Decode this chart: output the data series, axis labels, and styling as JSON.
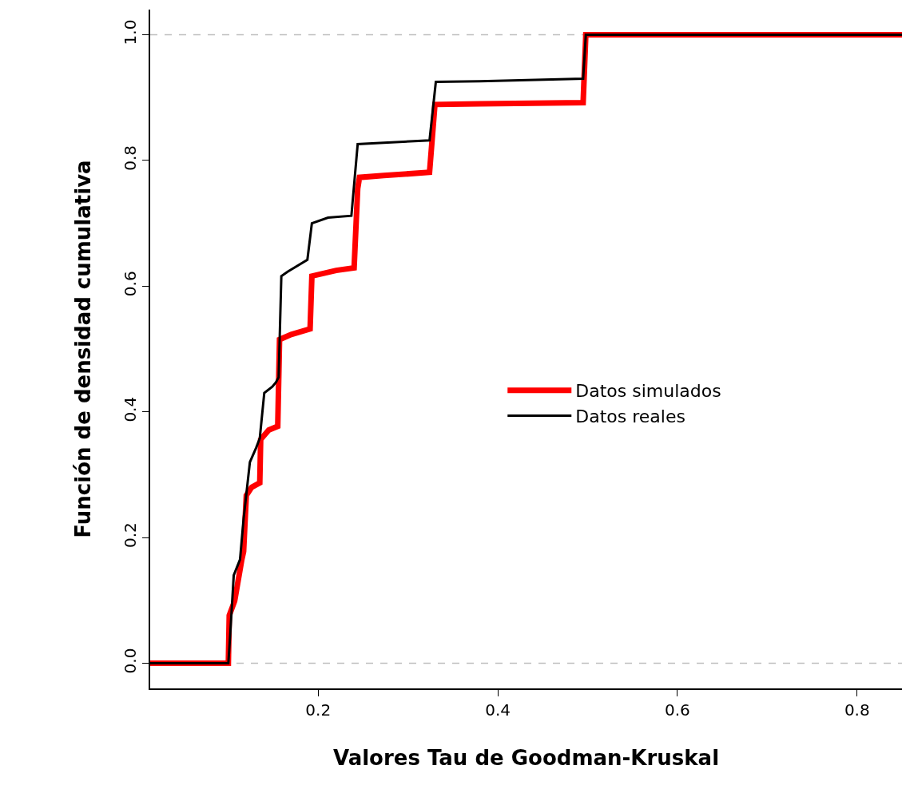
{
  "chart_data": {
    "type": "line",
    "xlabel": "Valores Tau de Goodman-Kruskal",
    "ylabel": "Función de densidad cumulativa",
    "series": [
      {
        "name": "Datos simulados",
        "color": "#ff0000",
        "x": [
          0.013,
          0.1,
          0.101,
          0.107,
          0.115,
          0.117,
          0.12,
          0.126,
          0.135,
          0.136,
          0.145,
          0.155,
          0.157,
          0.17,
          0.191,
          0.193,
          0.22,
          0.24,
          0.244,
          0.246,
          0.273,
          0.324,
          0.33,
          0.38,
          0.495,
          0.498,
          0.85
        ],
        "values": [
          0,
          0,
          0.076,
          0.099,
          0.165,
          0.178,
          0.267,
          0.28,
          0.287,
          0.356,
          0.371,
          0.377,
          0.515,
          0.523,
          0.532,
          0.616,
          0.625,
          0.629,
          0.755,
          0.773,
          0.776,
          0.781,
          0.889,
          0.89,
          0.892,
          1.0,
          1.0
        ]
      },
      {
        "name": "Datos reales",
        "color": "#000000",
        "x": [
          0.013,
          0.1,
          0.102,
          0.106,
          0.113,
          0.117,
          0.124,
          0.131,
          0.135,
          0.14,
          0.149,
          0.153,
          0.156,
          0.159,
          0.166,
          0.188,
          0.193,
          0.211,
          0.237,
          0.244,
          0.273,
          0.324,
          0.331,
          0.38,
          0.495,
          0.498,
          0.85
        ],
        "values": [
          0,
          0,
          0.044,
          0.14,
          0.165,
          0.23,
          0.32,
          0.343,
          0.358,
          0.43,
          0.44,
          0.447,
          0.455,
          0.616,
          0.623,
          0.642,
          0.7,
          0.709,
          0.712,
          0.826,
          0.828,
          0.832,
          0.925,
          0.926,
          0.93,
          1.0,
          1.0
        ]
      }
    ],
    "xlim": [
      0.013,
      0.85
    ],
    "ylim": [
      -0.04,
      1.04
    ],
    "xticks": [
      0.2,
      0.4,
      0.6,
      0.8
    ],
    "yticks": [
      {
        "value": 0,
        "label": "0.0"
      },
      {
        "value": 0.2,
        "label": "0.2"
      },
      {
        "value": 0.4,
        "label": "0.4"
      },
      {
        "value": 0.6,
        "label": "0.6"
      },
      {
        "value": 0.8,
        "label": "0.8"
      },
      {
        "value": 1.0,
        "label": "1.0"
      }
    ],
    "ref_lines": [
      {
        "axis": "y",
        "value": 0,
        "color": "#bebebe",
        "line_style": "dashed"
      },
      {
        "axis": "y",
        "value": 1,
        "color": "#bebebe",
        "line_style": "dashed"
      }
    ],
    "legend": "right",
    "grid": false,
    "marker": "none",
    "line_style": "solid"
  }
}
